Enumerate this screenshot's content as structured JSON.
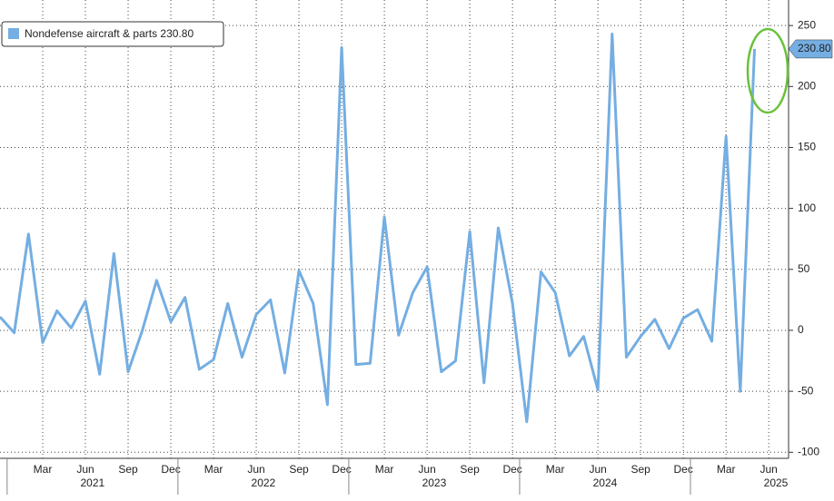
{
  "chart_data": {
    "type": "line",
    "x": [
      "2020-12",
      "2021-01",
      "2021-02",
      "2021-03",
      "2021-04",
      "2021-05",
      "2021-06",
      "2021-07",
      "2021-08",
      "2021-09",
      "2021-10",
      "2021-11",
      "2021-12",
      "2022-01",
      "2022-02",
      "2022-03",
      "2022-04",
      "2022-05",
      "2022-06",
      "2022-07",
      "2022-08",
      "2022-09",
      "2022-10",
      "2022-11",
      "2022-12",
      "2023-01",
      "2023-02",
      "2023-03",
      "2023-04",
      "2023-05",
      "2023-06",
      "2023-07",
      "2023-08",
      "2023-09",
      "2023-10",
      "2023-11",
      "2023-12",
      "2024-01",
      "2024-02",
      "2024-03",
      "2024-04",
      "2024-05",
      "2024-06",
      "2024-07",
      "2024-08",
      "2024-09",
      "2024-10",
      "2024-11",
      "2024-12",
      "2025-01",
      "2025-02",
      "2025-03",
      "2025-04",
      "2025-05"
    ],
    "series": [
      {
        "name": "Nondefense aircraft & parts",
        "color": "#74aee2",
        "values": [
          11,
          -2,
          79,
          -10,
          16,
          2,
          24,
          -36,
          63,
          -34,
          0,
          41,
          7,
          27,
          -32,
          -24,
          22,
          -22,
          13,
          25,
          -35,
          49,
          22,
          -61,
          232,
          -28,
          -27,
          93,
          -4,
          31,
          52,
          -34,
          -25,
          81,
          -43,
          84,
          22,
          -75,
          48,
          31,
          -21,
          -5,
          -49,
          243,
          -22,
          -5,
          9,
          -15,
          10,
          17,
          -9,
          159,
          -50,
          230.8
        ],
        "value_labels": [
          null,
          null,
          null,
          null,
          null,
          null,
          null,
          null,
          null,
          null,
          null,
          null,
          null,
          null,
          null,
          null,
          null,
          null,
          null,
          null,
          null,
          null,
          null,
          null,
          null,
          null,
          null,
          null,
          null,
          null,
          null,
          null,
          null,
          null,
          null,
          null,
          null,
          null,
          null,
          null,
          null,
          null,
          null,
          null,
          null,
          null,
          null,
          null,
          null,
          null,
          null,
          null,
          null,
          "230.80"
        ]
      }
    ],
    "xticks": [
      {
        "value": "2021-03",
        "label": "Mar"
      },
      {
        "value": "2021-06",
        "label": "Jun"
      },
      {
        "value": "2021-09",
        "label": "Sep"
      },
      {
        "value": "2021-12",
        "label": "Dec"
      },
      {
        "value": "2022-03",
        "label": "Mar"
      },
      {
        "value": "2022-06",
        "label": "Jun"
      },
      {
        "value": "2022-09",
        "label": "Sep"
      },
      {
        "value": "2022-12",
        "label": "Dec"
      },
      {
        "value": "2023-03",
        "label": "Mar"
      },
      {
        "value": "2023-06",
        "label": "Jun"
      },
      {
        "value": "2023-09",
        "label": "Sep"
      },
      {
        "value": "2023-12",
        "label": "Dec"
      },
      {
        "value": "2024-03",
        "label": "Mar"
      },
      {
        "value": "2024-06",
        "label": "Jun"
      },
      {
        "value": "2024-09",
        "label": "Sep"
      },
      {
        "value": "2024-12",
        "label": "Dec"
      },
      {
        "value": "2025-03",
        "label": "Mar"
      },
      {
        "value": "2025-06",
        "label": "Jun"
      }
    ],
    "years": [
      "2021",
      "2022",
      "2023",
      "2024",
      "2025"
    ],
    "ylim": [
      -105,
      265
    ],
    "yticks": [
      -100,
      -50,
      0,
      50,
      100,
      150,
      200,
      250
    ],
    "grid": true,
    "legend": "upper left"
  }
}
